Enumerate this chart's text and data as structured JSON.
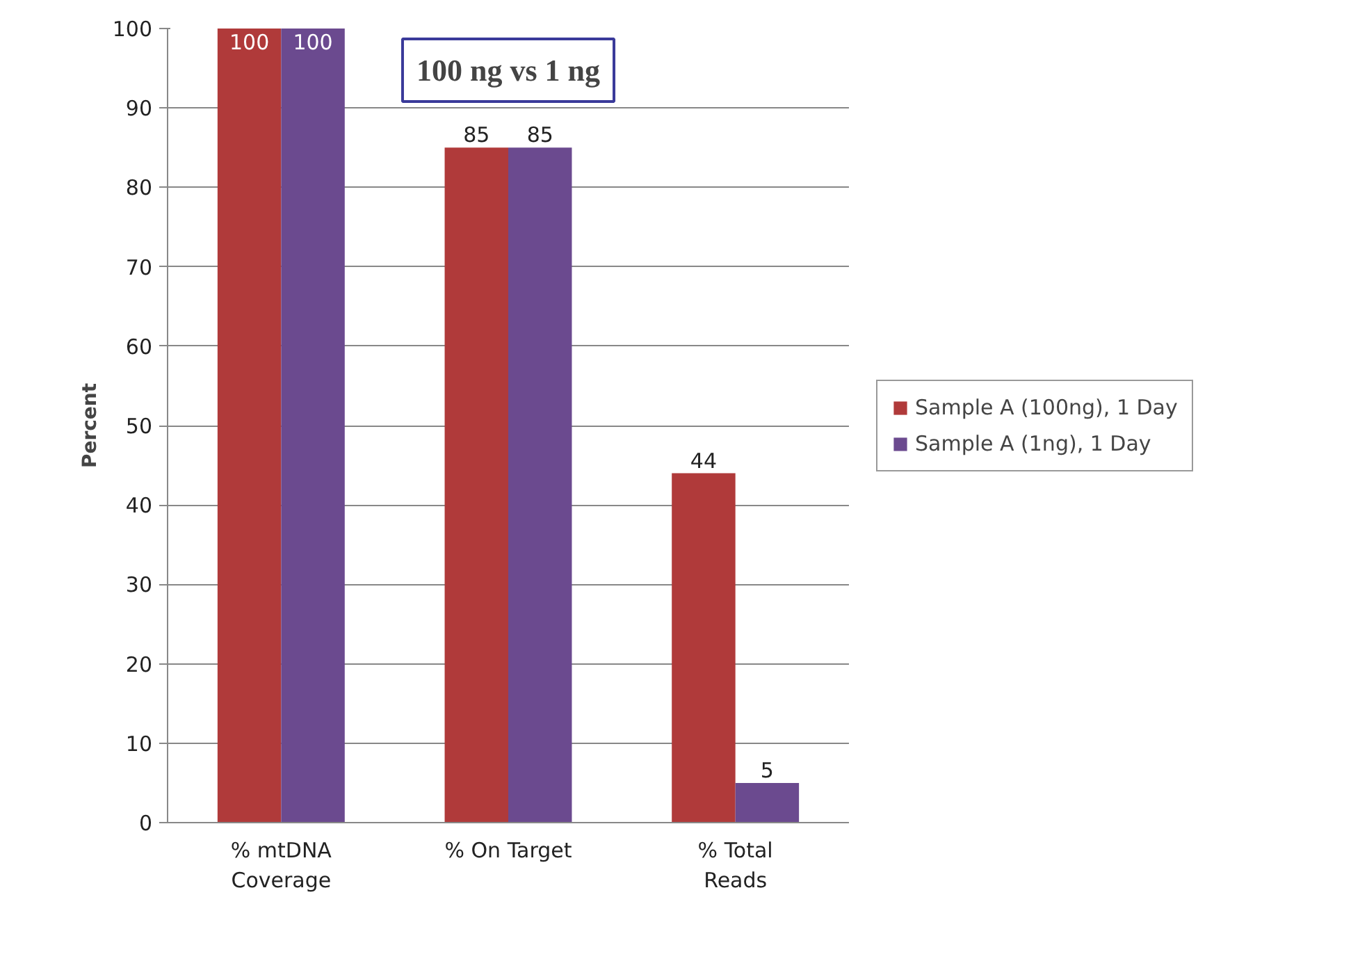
{
  "chart_data": {
    "type": "bar",
    "title": "100 ng vs 1 ng",
    "ylabel": "Percent",
    "categories": [
      "% mtDNA\nCoverage",
      "% On Target",
      "% Total\nReads"
    ],
    "series": [
      {
        "name": "Sample A (100ng), 1 Day",
        "color": "#b03a3a",
        "values": [
          100,
          85,
          44
        ]
      },
      {
        "name": "Sample A (1ng), 1 Day",
        "color": "#6b4a8f",
        "values": [
          100,
          85,
          5
        ]
      }
    ],
    "ylim": [
      0,
      100
    ],
    "yticks": [
      0,
      10,
      20,
      30,
      40,
      50,
      60,
      70,
      80,
      90,
      100
    ],
    "grid": "y",
    "legend": "right",
    "data_labels": true
  }
}
